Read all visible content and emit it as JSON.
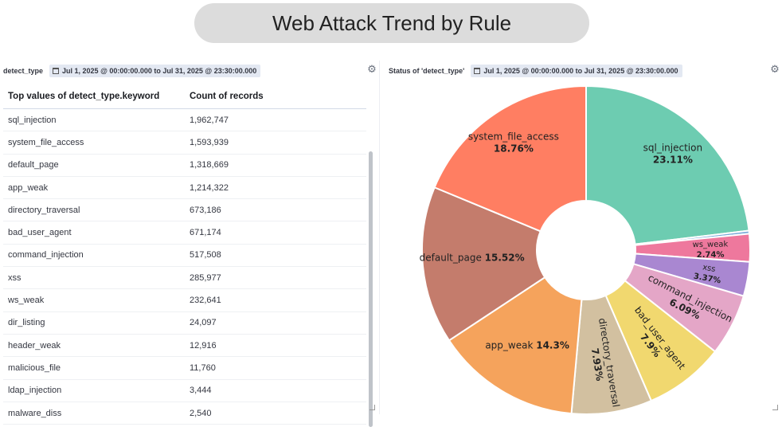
{
  "header": {
    "title": "Web Attack Trend by Rule"
  },
  "table_panel": {
    "title": "detect_type",
    "time_range": "Jul 1, 2025 @ 00:00:00.000 to Jul 31, 2025 @ 23:30:00.000",
    "columns": [
      "Top values of detect_type.keyword",
      "Count of records"
    ],
    "rows": [
      [
        "sql_injection",
        "1,962,747"
      ],
      [
        "system_file_access",
        "1,593,939"
      ],
      [
        "default_page",
        "1,318,669"
      ],
      [
        "app_weak",
        "1,214,322"
      ],
      [
        "directory_traversal",
        "673,186"
      ],
      [
        "bad_user_agent",
        "671,174"
      ],
      [
        "command_injection",
        "517,508"
      ],
      [
        "xss",
        "285,977"
      ],
      [
        "ws_weak",
        "232,641"
      ],
      [
        "dir_listing",
        "24,097"
      ],
      [
        "header_weak",
        "12,916"
      ],
      [
        "malicious_file",
        "11,760"
      ],
      [
        "ldap_injection",
        "3,444"
      ],
      [
        "malware_diss",
        "2,540"
      ]
    ]
  },
  "pie_panel": {
    "title": "Status of 'detect_type'",
    "time_range": "Jul 1, 2025 @ 00:00:00.000 to Jul 31, 2025 @ 23:30:00.000"
  },
  "icons": {
    "settings": "gear-icon",
    "time": "calendar-icon",
    "resize": "resize-handle-icon"
  },
  "chart_data": {
    "type": "pie",
    "donut": true,
    "labels": [
      "sql_injection",
      "ws_weak",
      "xss",
      "command_injection",
      "bad_user_agent",
      "directory_traversal",
      "app_weak",
      "default_page",
      "system_file_access"
    ],
    "values": [
      23.11,
      2.74,
      3.37,
      6.09,
      7.9,
      7.93,
      14.3,
      15.52,
      18.76
    ],
    "value_labels": [
      "23.11%",
      "2.74%",
      "3.37%",
      "6.09%",
      "7.9%",
      "7.93%",
      "14.3%",
      "15.52%",
      "18.76%"
    ],
    "colors": [
      "#6dccb1",
      "#79aad9",
      "#ee789d",
      "#a987d1",
      "#e4a6c7",
      "#f1d86f",
      "#d2c0a0",
      "#f5a35c",
      "#c47c6c",
      "#ff7e62"
    ],
    "label_style": [
      "stacked",
      "stacked",
      "stacked",
      "stacked",
      "stacked",
      "stacked",
      "inline",
      "inline",
      "stacked"
    ],
    "slice_names_order_note": "",
    "sliver": {
      "value": 0.3
    }
  }
}
